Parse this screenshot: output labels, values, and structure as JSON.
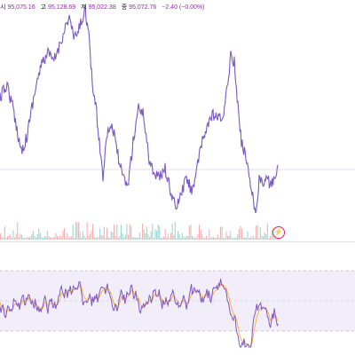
{
  "legend": {
    "open_label": "시",
    "open_value": "95,075.16",
    "high_label": "고",
    "high_value": "95,128.69",
    "low_label": "저",
    "low_value": "95,022.38",
    "close_label": "종",
    "close_value": "95,072.76",
    "change": "−2.40 (−0.00%)"
  },
  "colors": {
    "price_line": "#7e57c2",
    "price_line_alt": "#3f51b5",
    "volume_up": "#26a69a",
    "volume_down": "#ef5350",
    "rsi_line": "#7e57c2",
    "rsi_ma": "#ff9800",
    "rsi_band": "#ede7f6",
    "lightning": "#e91e63"
  },
  "icons": {
    "events": "lightning-icon"
  },
  "lightning_glyph": "⚡"
}
